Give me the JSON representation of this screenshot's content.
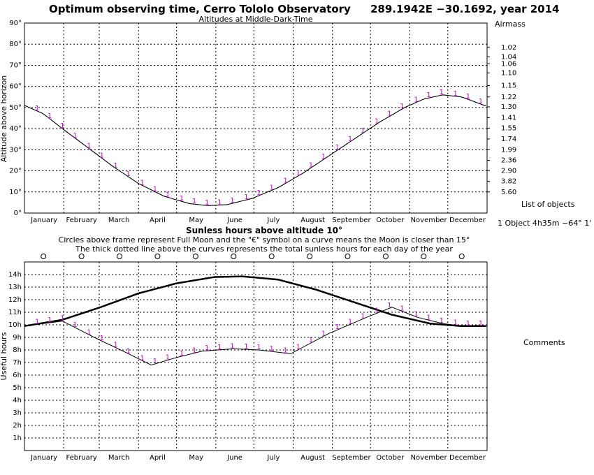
{
  "header": {
    "title": "Optimum observing time, Cerro Tololo Observatory",
    "coords": "289.1942E −30.1692, year 2014"
  },
  "colors": {
    "series": "#000000",
    "marker": "#d000d0",
    "grid": "#000000"
  },
  "chart_data": [
    {
      "type": "line",
      "title": "Altitudes at Middle-Dark-Time",
      "ylabel": "Altitude above horizon",
      "ylim": [
        0,
        90
      ],
      "y_ticks": [
        "0°",
        "10°",
        "20°",
        "30°",
        "40°",
        "50°",
        "60°",
        "70°",
        "80°",
        "90°"
      ],
      "months": [
        "January",
        "February",
        "March",
        "April",
        "May",
        "June",
        "July",
        "August",
        "September",
        "October",
        "November",
        "December"
      ],
      "airmass_label": "Airmass",
      "airmass_ticks": [
        {
          "alt": 78.5,
          "label": "1.02"
        },
        {
          "alt": 74,
          "label": "1.04"
        },
        {
          "alt": 70.7,
          "label": "1.06"
        },
        {
          "alt": 66.4,
          "label": "1.10"
        },
        {
          "alt": 60.4,
          "label": "1.15"
        },
        {
          "alt": 55,
          "label": "1.22"
        },
        {
          "alt": 50.3,
          "label": "1.30"
        },
        {
          "alt": 45.2,
          "label": "1.41"
        },
        {
          "alt": 40.2,
          "label": "1.55"
        },
        {
          "alt": 35.1,
          "label": "1.74"
        },
        {
          "alt": 30,
          "label": "1.99"
        },
        {
          "alt": 25,
          "label": "2.36"
        },
        {
          "alt": 20.1,
          "label": "2.90"
        },
        {
          "alt": 15,
          "label": "3.82"
        },
        {
          "alt": 10,
          "label": "5.60"
        }
      ],
      "series": [
        {
          "values_by_day": [
            [
              0,
              51
            ],
            [
              15,
              47
            ],
            [
              31,
              39.5
            ],
            [
              50,
              31
            ],
            [
              70,
              22
            ],
            [
              90,
              14
            ],
            [
              110,
              8
            ],
            [
              130,
              4.5
            ],
            [
              145,
              3.5
            ],
            [
              160,
              4
            ],
            [
              180,
              7
            ],
            [
              200,
              12
            ],
            [
              220,
              19
            ],
            [
              240,
              27
            ],
            [
              260,
              35
            ],
            [
              280,
              43
            ],
            [
              300,
              50
            ],
            [
              315,
              54
            ],
            [
              330,
              56
            ],
            [
              345,
              55
            ],
            [
              365,
              50.5
            ]
          ]
        }
      ],
      "object_marker": "1",
      "marker_days": [
        10,
        20,
        30,
        40,
        51,
        61,
        72,
        82,
        93,
        103,
        113,
        124,
        134,
        144,
        154,
        164,
        175,
        185,
        195,
        206,
        216,
        226,
        236,
        247,
        257,
        267,
        278,
        288,
        298,
        309,
        319,
        329,
        340,
        350,
        360
      ]
    },
    {
      "type": "line",
      "title": "Sunless hours above altitude 10°",
      "notes": [
        "Circles above frame represent Full Moon and the \"€\" symbol on a curve means the Moon is closer than 15°",
        "The thick dotted line above the curves represents the total sunless hours for each day of the year"
      ],
      "ylabel": "Useful hours",
      "ylim": [
        0,
        15
      ],
      "y_ticks": [
        "1h",
        "2h",
        "3h",
        "4h",
        "5h",
        "6h",
        "7h",
        "8h",
        "9h",
        "10h",
        "11h",
        "12h",
        "13h",
        "14h"
      ],
      "months": [
        "January",
        "February",
        "March",
        "April",
        "May",
        "June",
        "July",
        "August",
        "September",
        "October",
        "November",
        "December"
      ],
      "full_moon_days": [
        15,
        45,
        75,
        105,
        135,
        165,
        195,
        225,
        255,
        285,
        315,
        345
      ],
      "series": [
        {
          "role": "total sunless hours",
          "values_by_day": [
            [
              0,
              9.9
            ],
            [
              30,
              10.4
            ],
            [
              60,
              11.4
            ],
            [
              90,
              12.5
            ],
            [
              120,
              13.3
            ],
            [
              150,
              13.8
            ],
            [
              172,
              13.85
            ],
            [
              200,
              13.6
            ],
            [
              230,
              12.8
            ],
            [
              260,
              11.8
            ],
            [
              290,
              10.8
            ],
            [
              320,
              10.1
            ],
            [
              345,
              9.9
            ],
            [
              365,
              9.9
            ]
          ]
        },
        {
          "role": "object useful hours",
          "values_by_day": [
            [
              0,
              9.9
            ],
            [
              30,
              10.3
            ],
            [
              55,
              9
            ],
            [
              80,
              7.8
            ],
            [
              100,
              6.8
            ],
            [
              120,
              7.4
            ],
            [
              140,
              7.9
            ],
            [
              165,
              8.1
            ],
            [
              185,
              8
            ],
            [
              210,
              7.7
            ],
            [
              240,
              9.3
            ],
            [
              270,
              10.6
            ],
            [
              290,
              11.4
            ],
            [
              310,
              10.6
            ],
            [
              330,
              10.1
            ],
            [
              345,
              9.9
            ],
            [
              365,
              9.9
            ]
          ]
        }
      ],
      "object_marker": "1",
      "marker_days": [
        10,
        20,
        30,
        40,
        51,
        61,
        72,
        82,
        93,
        103,
        113,
        124,
        134,
        144,
        154,
        164,
        175,
        185,
        195,
        206,
        216,
        226,
        236,
        247,
        257,
        267,
        278,
        288,
        298,
        309,
        319,
        329,
        340,
        350,
        360
      ]
    }
  ],
  "side": {
    "list_title": "List of objects",
    "object_entry": "1 Object  4h35m −64° 1'",
    "comments": "Comments"
  }
}
